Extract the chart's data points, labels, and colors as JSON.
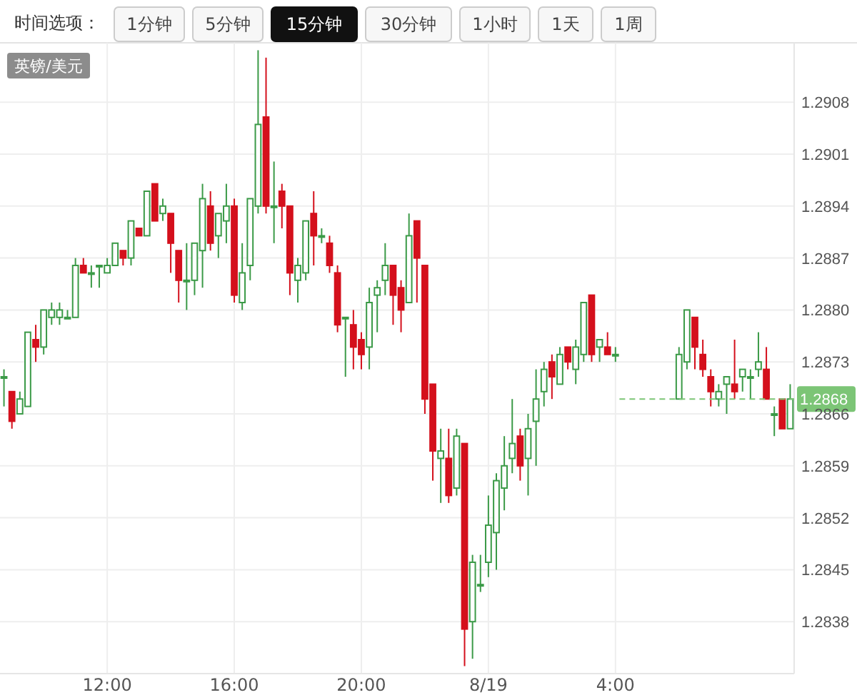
{
  "chart_data": {
    "type": "candlestick",
    "title": "英镑/美元",
    "annotations": [
      "时间选项：",
      "1分钟",
      "5分钟",
      "15分钟",
      "30分钟",
      "1小时",
      "1天",
      "1周"
    ],
    "categories": [
      null,
      null,
      null,
      null,
      null,
      null,
      null,
      null,
      null,
      null,
      null,
      null,
      null,
      "12:00",
      null,
      null,
      null,
      null,
      null,
      null,
      null,
      null,
      null,
      null,
      null,
      null,
      null,
      null,
      null,
      "16:00",
      null,
      null,
      null,
      null,
      null,
      null,
      null,
      null,
      null,
      null,
      null,
      null,
      null,
      null,
      null,
      "20:00",
      null,
      null,
      null,
      null,
      null,
      null,
      null,
      null,
      null,
      null,
      null,
      null,
      null,
      null,
      null,
      "8/19",
      null,
      null,
      null,
      null,
      null,
      null,
      null,
      null,
      null,
      null,
      null,
      null,
      null,
      null,
      null,
      "4:00",
      null,
      null,
      null,
      null,
      null,
      null,
      null,
      null,
      null,
      null,
      null,
      null,
      null,
      null,
      null,
      null,
      null,
      null,
      null,
      null,
      null,
      null
    ],
    "ohlc": [
      [
        1.2871,
        1.2872,
        1.2867,
        1.2871
      ],
      [
        1.2869,
        1.2869,
        1.2864,
        1.2865
      ],
      [
        1.2866,
        1.2869,
        1.2866,
        1.2868
      ],
      [
        1.2867,
        1.2877,
        1.2867,
        1.2877
      ],
      [
        1.2876,
        1.2878,
        1.2873,
        1.2875
      ],
      [
        1.2875,
        1.288,
        1.2874,
        1.288
      ],
      [
        1.2879,
        1.2881,
        1.2878,
        1.288
      ],
      [
        1.2879,
        1.2881,
        1.2878,
        1.288
      ],
      [
        1.2879,
        1.288,
        1.2879,
        1.2879
      ],
      [
        1.2879,
        1.2887,
        1.2879,
        1.2886
      ],
      [
        1.2886,
        1.2887,
        1.2885,
        1.2885
      ],
      [
        1.2885,
        1.2886,
        1.2883,
        1.2885
      ],
      [
        1.2886,
        1.2886,
        1.2883,
        1.2886
      ],
      [
        1.2885,
        1.2887,
        1.2885,
        1.2886
      ],
      [
        1.2886,
        1.2889,
        1.2886,
        1.2889
      ],
      [
        1.2888,
        1.2888,
        1.2886,
        1.2887
      ],
      [
        1.2887,
        1.2892,
        1.2886,
        1.2892
      ],
      [
        1.2891,
        1.2891,
        1.289,
        1.289
      ],
      [
        1.289,
        1.2896,
        1.289,
        1.2896
      ],
      [
        1.2897,
        1.2897,
        1.2892,
        1.2892
      ],
      [
        1.2893,
        1.2895,
        1.2892,
        1.2894
      ],
      [
        1.2893,
        1.2893,
        1.2885,
        1.2889
      ],
      [
        1.2888,
        1.2888,
        1.2881,
        1.2884
      ],
      [
        1.2884,
        1.2889,
        1.288,
        1.2884
      ],
      [
        1.2884,
        1.2889,
        1.2882,
        1.2889
      ],
      [
        1.2888,
        1.2897,
        1.2883,
        1.2895
      ],
      [
        1.2894,
        1.2896,
        1.2888,
        1.2889
      ],
      [
        1.289,
        1.2893,
        1.2887,
        1.2893
      ],
      [
        1.2892,
        1.2897,
        1.2889,
        1.2894
      ],
      [
        1.2894,
        1.2895,
        1.2881,
        1.2882
      ],
      [
        1.2881,
        1.2889,
        1.288,
        1.2885
      ],
      [
        1.2886,
        1.2895,
        1.2884,
        1.2895
      ],
      [
        1.2894,
        1.2915,
        1.2893,
        1.2905
      ],
      [
        1.2906,
        1.2914,
        1.2893,
        1.2894
      ],
      [
        1.2894,
        1.29,
        1.2889,
        1.2894
      ],
      [
        1.2896,
        1.2897,
        1.2891,
        1.2894
      ],
      [
        1.2894,
        1.2894,
        1.2882,
        1.2885
      ],
      [
        1.2884,
        1.2887,
        1.2881,
        1.2886
      ],
      [
        1.2885,
        1.2892,
        1.2884,
        1.2892
      ],
      [
        1.2893,
        1.2896,
        1.2886,
        1.289
      ],
      [
        1.289,
        1.2891,
        1.2889,
        1.289
      ],
      [
        1.2889,
        1.289,
        1.2885,
        1.2886
      ],
      [
        1.2885,
        1.2886,
        1.2877,
        1.2878
      ],
      [
        1.2879,
        1.2879,
        1.2871,
        1.2879
      ],
      [
        1.2878,
        1.288,
        1.2872,
        1.2875
      ],
      [
        1.2876,
        1.2877,
        1.2872,
        1.2874
      ],
      [
        1.2875,
        1.2883,
        1.2872,
        1.2881
      ],
      [
        1.2882,
        1.2884,
        1.2877,
        1.2883
      ],
      [
        1.2884,
        1.2889,
        1.2882,
        1.2886
      ],
      [
        1.2886,
        1.2886,
        1.2878,
        1.2882
      ],
      [
        1.2883,
        1.2884,
        1.2877,
        1.288
      ],
      [
        1.2881,
        1.2893,
        1.2881,
        1.289
      ],
      [
        1.2892,
        1.2892,
        1.2881,
        1.2887
      ],
      [
        1.2886,
        1.2886,
        1.2866,
        1.2868
      ],
      [
        1.287,
        1.287,
        1.2857,
        1.2861
      ],
      [
        1.286,
        1.2864,
        1.2854,
        1.2861
      ],
      [
        1.286,
        1.2864,
        1.2854,
        1.2855
      ],
      [
        1.2856,
        1.2864,
        1.2855,
        1.2863
      ],
      [
        1.2862,
        1.2862,
        1.2832,
        1.2837
      ],
      [
        1.2838,
        1.2847,
        1.2833,
        1.2846
      ],
      [
        1.2843,
        1.2847,
        1.2842,
        1.2843
      ],
      [
        1.2846,
        1.2855,
        1.2844,
        1.2851
      ],
      [
        1.285,
        1.2858,
        1.2845,
        1.2857
      ],
      [
        1.2856,
        1.2863,
        1.2853,
        1.2859
      ],
      [
        1.286,
        1.2868,
        1.2858,
        1.2862
      ],
      [
        1.2863,
        1.2864,
        1.2857,
        1.2859
      ],
      [
        1.286,
        1.2866,
        1.2855,
        1.2864
      ],
      [
        1.2865,
        1.2872,
        1.2859,
        1.2868
      ],
      [
        1.2869,
        1.2873,
        1.2867,
        1.2872
      ],
      [
        1.2873,
        1.2874,
        1.2868,
        1.2871
      ],
      [
        1.287,
        1.2875,
        1.287,
        1.2874
      ],
      [
        1.2875,
        1.2875,
        1.2872,
        1.2873
      ],
      [
        1.2872,
        1.2876,
        1.287,
        1.2875
      ],
      [
        1.2874,
        1.2881,
        1.2873,
        1.2881
      ],
      [
        1.2882,
        1.2882,
        1.2873,
        1.2874
      ],
      [
        1.2875,
        1.2876,
        1.2873,
        1.2876
      ],
      [
        1.2875,
        1.2877,
        1.2874,
        1.2874
      ],
      [
        1.2874,
        1.2875,
        1.2873,
        1.2874
      ],
      null,
      null,
      null,
      null,
      null,
      null,
      null,
      [
        1.2868,
        1.2875,
        1.2868,
        1.2874
      ],
      [
        1.2873,
        1.288,
        1.2872,
        1.288
      ],
      [
        1.2879,
        1.2879,
        1.2872,
        1.2875
      ],
      [
        1.2874,
        1.2876,
        1.2871,
        1.2872
      ],
      [
        1.2871,
        1.2872,
        1.2867,
        1.2869
      ],
      [
        1.2868,
        1.287,
        1.2867,
        1.2869
      ],
      [
        1.287,
        1.2871,
        1.2866,
        1.2871
      ],
      [
        1.287,
        1.2876,
        1.2868,
        1.2869
      ],
      [
        1.2871,
        1.2872,
        1.2869,
        1.2872
      ],
      [
        1.2871,
        1.2872,
        1.2868,
        1.2871
      ],
      [
        1.2872,
        1.2877,
        1.2871,
        1.2873
      ],
      [
        1.2872,
        1.2875,
        1.2868,
        1.2868
      ],
      [
        1.2866,
        1.2867,
        1.2863,
        1.2866
      ],
      [
        1.2868,
        1.2868,
        1.2864,
        1.2864
      ],
      [
        1.2864,
        1.287,
        1.2864,
        1.2868
      ]
    ],
    "colors": [
      "#3b9a47",
      "#d4101c",
      "#3b9a47",
      "#3b9a47",
      "#d4101c",
      "#3b9a47",
      "#3b9a47",
      "#3b9a47",
      "#3b9a47",
      "#3b9a47",
      "#d4101c",
      "#3b9a47",
      "#3b9a47",
      "#3b9a47",
      "#3b9a47",
      "#d4101c",
      "#3b9a47",
      "#d4101c",
      "#3b9a47",
      "#d4101c",
      "#3b9a47",
      "#d4101c",
      "#d4101c",
      "#3b9a47",
      "#3b9a47",
      "#3b9a47",
      "#d4101c",
      "#3b9a47",
      "#3b9a47",
      "#d4101c",
      "#3b9a47",
      "#3b9a47",
      "#3b9a47",
      "#d4101c",
      "#3b9a47",
      "#d4101c",
      "#d4101c",
      "#3b9a47",
      "#3b9a47",
      "#d4101c",
      "#3b9a47",
      "#d4101c",
      "#d4101c",
      "#3b9a47",
      "#d4101c",
      "#d4101c",
      "#3b9a47",
      "#3b9a47",
      "#3b9a47",
      "#d4101c",
      "#d4101c",
      "#3b9a47",
      "#d4101c",
      "#d4101c",
      "#d4101c",
      "#3b9a47",
      "#d4101c",
      "#3b9a47",
      "#d4101c",
      "#3b9a47",
      "#3b9a47",
      "#3b9a47",
      "#3b9a47",
      "#3b9a47",
      "#3b9a47",
      "#d4101c",
      "#3b9a47",
      "#3b9a47",
      "#3b9a47",
      "#d4101c",
      "#3b9a47",
      "#d4101c",
      "#3b9a47",
      "#3b9a47",
      "#d4101c",
      "#3b9a47",
      "#d4101c",
      "#3b9a47",
      null,
      null,
      null,
      null,
      null,
      null,
      null,
      "#3b9a47",
      "#3b9a47",
      "#d4101c",
      "#d4101c",
      "#d4101c",
      "#3b9a47",
      "#3b9a47",
      "#d4101c",
      "#3b9a47",
      "#3b9a47",
      "#3b9a47",
      "#d4101c",
      "#3b9a47",
      "#d4101c",
      "#3b9a47"
    ],
    "ylim": [
      1.2831,
      1.2916
    ],
    "yticks": [
      1.2838,
      1.2845,
      1.2852,
      1.2859,
      1.2866,
      1.2873,
      {
        "value": 1.288,
        "label": "1.2880"
      },
      1.2887,
      1.2894,
      1.2901,
      1.2908
    ],
    "grid": true,
    "ref_lines": [
      {
        "axis": "y",
        "value": 1.2868,
        "label": "1.2868",
        "color": "#7cc576",
        "line_style": "dashed"
      }
    ]
  }
}
